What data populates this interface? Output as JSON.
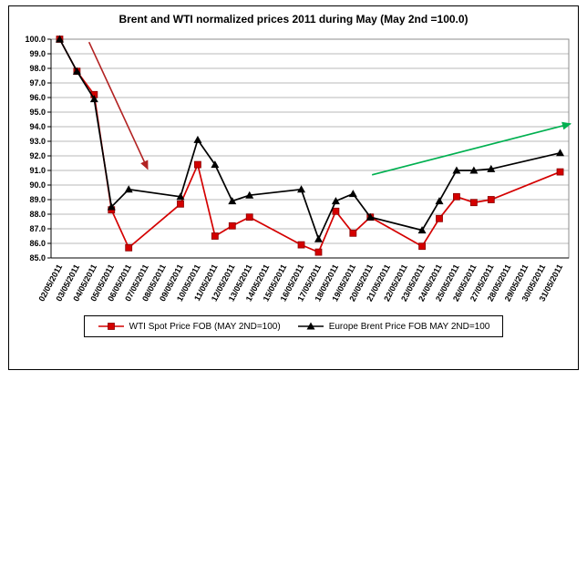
{
  "chart_data": {
    "type": "line",
    "title": "Brent and WTI normalized prices 2011 during May  (May 2nd =100.0)",
    "xlabel": "",
    "ylabel": "",
    "ylim": [
      85.0,
      100.0
    ],
    "y_tick_step": 1.0,
    "y_ticks": [
      85.0,
      86.0,
      87.0,
      88.0,
      89.0,
      90.0,
      91.0,
      92.0,
      93.0,
      94.0,
      95.0,
      96.0,
      97.0,
      98.0,
      99.0,
      100.0
    ],
    "grid": true,
    "legend_position": "bottom",
    "categories": [
      "02/05/2011",
      "03/05/2011",
      "04/05/2011",
      "05/05/2011",
      "06/05/2011",
      "07/05/2011",
      "08/05/2011",
      "09/05/2011",
      "10/05/2011",
      "11/05/2011",
      "12/05/2011",
      "13/05/2011",
      "14/05/2011",
      "15/05/2011",
      "16/05/2011",
      "17/05/2011",
      "18/05/2011",
      "19/05/2011",
      "20/05/2011",
      "21/05/2011",
      "22/05/2011",
      "23/05/2011",
      "24/05/2011",
      "25/05/2011",
      "26/05/2011",
      "27/05/2011",
      "28/05/2011",
      "29/05/2011",
      "30/05/2011",
      "31/05/2011"
    ],
    "series": [
      {
        "id": "wti",
        "name": "WTI Spot Price FOB (MAY 2ND=100)",
        "color": "#d40000",
        "marker": "square",
        "values": [
          100.0,
          97.8,
          96.2,
          88.3,
          85.7,
          null,
          null,
          88.7,
          91.4,
          86.5,
          87.2,
          87.8,
          null,
          null,
          85.9,
          85.4,
          88.2,
          86.7,
          87.8,
          null,
          null,
          85.8,
          87.7,
          89.2,
          88.8,
          89.0,
          null,
          null,
          null,
          90.9
        ]
      },
      {
        "id": "brent",
        "name": "Europe Brent Price FOB MAY 2ND=100",
        "color": "#000000",
        "marker": "triangle",
        "values": [
          100.0,
          97.8,
          95.9,
          88.5,
          89.7,
          null,
          null,
          89.2,
          93.1,
          91.4,
          88.9,
          89.3,
          null,
          null,
          89.7,
          86.3,
          88.9,
          89.4,
          87.8,
          null,
          null,
          86.9,
          88.9,
          91.0,
          91.0,
          91.1,
          null,
          null,
          null,
          92.2
        ]
      }
    ],
    "annotations": [
      {
        "name": "downtrend-arrow",
        "type": "arrow",
        "color": "#b22222",
        "from": {
          "x": 1.7,
          "y": 99.8
        },
        "to": {
          "x": 5.1,
          "y": 91.1
        }
      },
      {
        "name": "uptrend-arrow",
        "type": "arrow",
        "color": "#00b050",
        "from": {
          "x": 18.1,
          "y": 90.7
        },
        "to": {
          "x": 29.6,
          "y": 94.2
        }
      }
    ]
  }
}
